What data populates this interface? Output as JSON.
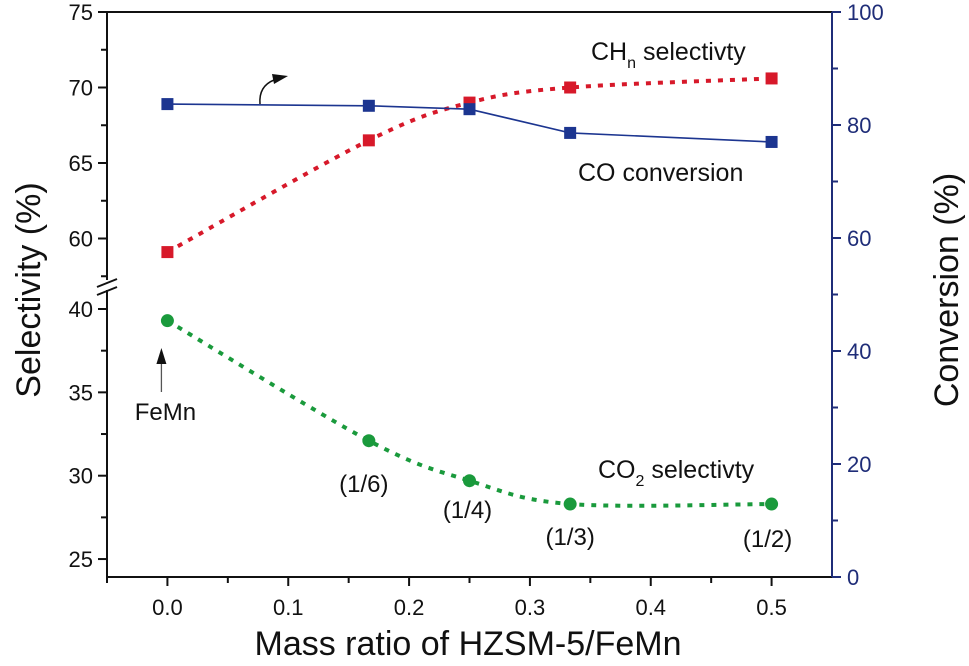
{
  "chart_data": {
    "type": "line",
    "xlabel": "Mass ratio of HZSM-5/FeMn",
    "ylabel_left": "Selectivity (%)",
    "ylabel_right": "Conversion (%)",
    "xlim": [
      -0.05,
      0.55
    ],
    "x_ticks": [
      "0.0",
      "0.1",
      "0.2",
      "0.3",
      "0.4",
      "0.5"
    ],
    "left_axis": {
      "broken": true,
      "upper_range": [
        57.25,
        75
      ],
      "lower_range": [
        23.9,
        41.1
      ],
      "ticks_upper": [
        "60",
        "65",
        "70",
        "75"
      ],
      "ticks_lower": [
        "25",
        "30",
        "35",
        "40"
      ]
    },
    "right_axis": {
      "ylim": [
        0,
        100
      ],
      "ticks": [
        "0",
        "20",
        "40",
        "60",
        "80",
        "100"
      ],
      "color": "#1f2d78"
    },
    "x": [
      0,
      0.1667,
      0.25,
      0.3333,
      0.5
    ],
    "point_labels": [
      "FeMn",
      "(1/6)",
      "(1/4)",
      "(1/3)",
      "(1/2)"
    ],
    "series": [
      {
        "name_main": "CH",
        "name_sub": "n",
        "name_rest": " selectivty",
        "axis": "left",
        "values": [
          59.1,
          66.5,
          69.0,
          70.0,
          70.6
        ],
        "color": "#d7192a",
        "marker": "square",
        "line": "dotted"
      },
      {
        "name_main": "CO conversion",
        "axis": "right",
        "values": [
          83.7,
          83.4,
          82.8,
          78.6,
          77.0
        ],
        "color": "#1c3590",
        "marker": "square",
        "line": "solid"
      },
      {
        "name_main": "CO",
        "name_sub": "2",
        "name_rest": " selectivty",
        "axis": "left",
        "values": [
          39.3,
          32.1,
          29.7,
          28.3,
          28.3
        ],
        "color": "#1a9a3c",
        "marker": "circle",
        "line": "dotted"
      }
    ],
    "grid": false
  }
}
